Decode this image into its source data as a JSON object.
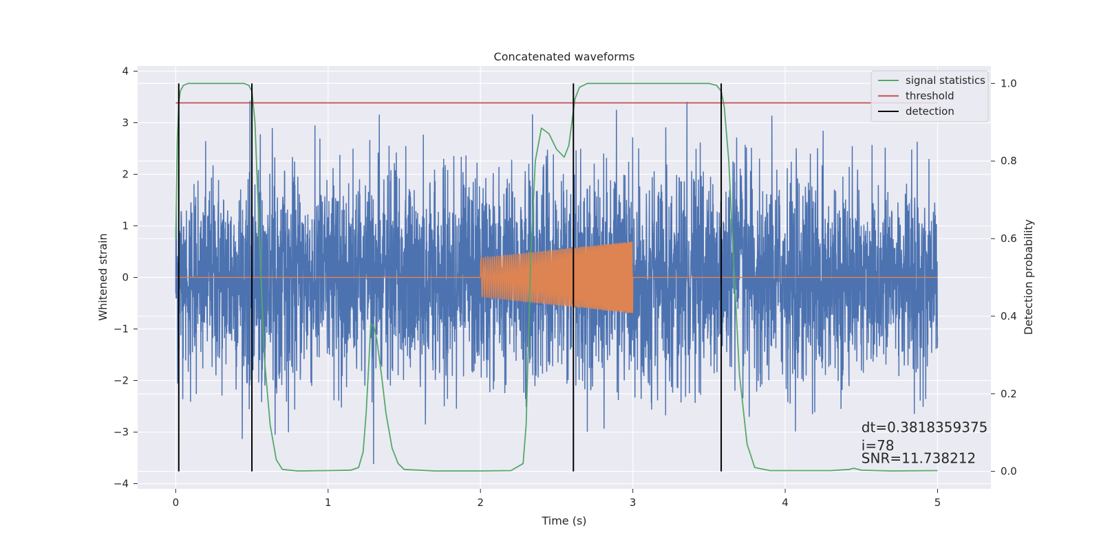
{
  "chart_data": {
    "type": "line",
    "title": "Concatenated waveforms",
    "xlabel": "Time (s)",
    "ylabel": "Whitened strain",
    "y2label": "Detection probability",
    "xlim": [
      -0.25,
      5.35
    ],
    "ylim": [
      -4.1,
      4.1
    ],
    "y2lim": [
      -0.045,
      1.045
    ],
    "xticks": [
      "0",
      "1",
      "2",
      "3",
      "4",
      "5"
    ],
    "yticks": [
      "−4",
      "−3",
      "−2",
      "−1",
      "0",
      "1",
      "2",
      "3",
      "4"
    ],
    "y2ticks": [
      "0.0",
      "0.2",
      "0.4",
      "0.6",
      "0.8",
      "1.0"
    ],
    "grid": true,
    "legend_position": "top-right",
    "series": [
      {
        "name": "",
        "color": "#4c72b0",
        "kind": "noise",
        "x_range": [
          0,
          5
        ],
        "amplitude_std": 1.0,
        "peak_min": -3.7,
        "peak_max": 3.7
      },
      {
        "name": "",
        "color": "#dd8452",
        "kind": "chirp",
        "x_range": [
          2.0,
          3.0
        ],
        "amplitude_start": 0.38,
        "amplitude_end": 0.7,
        "baseline": 0
      },
      {
        "name": "signal statistics",
        "color": "#55a868",
        "axis": "right",
        "x": [
          0.0,
          0.01,
          0.02,
          0.03,
          0.05,
          0.08,
          0.12,
          0.3,
          0.45,
          0.48,
          0.5,
          0.52,
          0.55,
          0.58,
          0.62,
          0.66,
          0.7,
          0.8,
          1.0,
          1.15,
          1.2,
          1.23,
          1.25,
          1.27,
          1.28,
          1.3,
          1.32,
          1.35,
          1.38,
          1.42,
          1.46,
          1.5,
          1.7,
          2.0,
          2.2,
          2.28,
          2.3,
          2.33,
          2.36,
          2.4,
          2.45,
          2.5,
          2.55,
          2.58,
          2.6,
          2.62,
          2.65,
          2.7,
          2.8,
          3.0,
          3.3,
          3.5,
          3.55,
          3.58,
          3.6,
          3.63,
          3.66,
          3.7,
          3.75,
          3.8,
          3.9,
          4.0,
          4.3,
          4.42,
          4.45,
          4.5,
          4.7,
          5.0
        ],
        "y": [
          0.6,
          0.85,
          0.95,
          0.98,
          0.995,
          1.0,
          1.0,
          1.0,
          1.0,
          0.995,
          0.98,
          0.9,
          0.6,
          0.3,
          0.12,
          0.03,
          0.005,
          0.001,
          0.002,
          0.003,
          0.01,
          0.05,
          0.15,
          0.3,
          0.38,
          0.375,
          0.34,
          0.25,
          0.15,
          0.06,
          0.02,
          0.005,
          0.001,
          0.001,
          0.002,
          0.02,
          0.12,
          0.55,
          0.8,
          0.885,
          0.87,
          0.83,
          0.81,
          0.84,
          0.9,
          0.96,
          0.99,
          1.0,
          1.0,
          1.0,
          1.0,
          1.0,
          0.995,
          0.98,
          0.94,
          0.8,
          0.55,
          0.25,
          0.07,
          0.01,
          0.002,
          0.002,
          0.002,
          0.005,
          0.008,
          0.003,
          0.001,
          0.002
        ]
      },
      {
        "name": "threshold",
        "color": "#c44e52",
        "axis": "right",
        "x": [
          0.0,
          5.0
        ],
        "y": [
          0.95,
          0.95
        ]
      },
      {
        "name": "detection",
        "color": "#000000",
        "kind": "vlines",
        "x": [
          0.02,
          0.5,
          2.61,
          3.58
        ],
        "y2_range": [
          0.0,
          1.0
        ]
      }
    ],
    "annotations": [
      {
        "text": "dt=0.3818359375",
        "x": 4.5,
        "y": -3.0
      },
      {
        "text": " i=78",
        "x": 4.5,
        "y": -3.35
      },
      {
        "text": "SNR=11.738212",
        "x": 4.5,
        "y": -3.6
      }
    ]
  }
}
